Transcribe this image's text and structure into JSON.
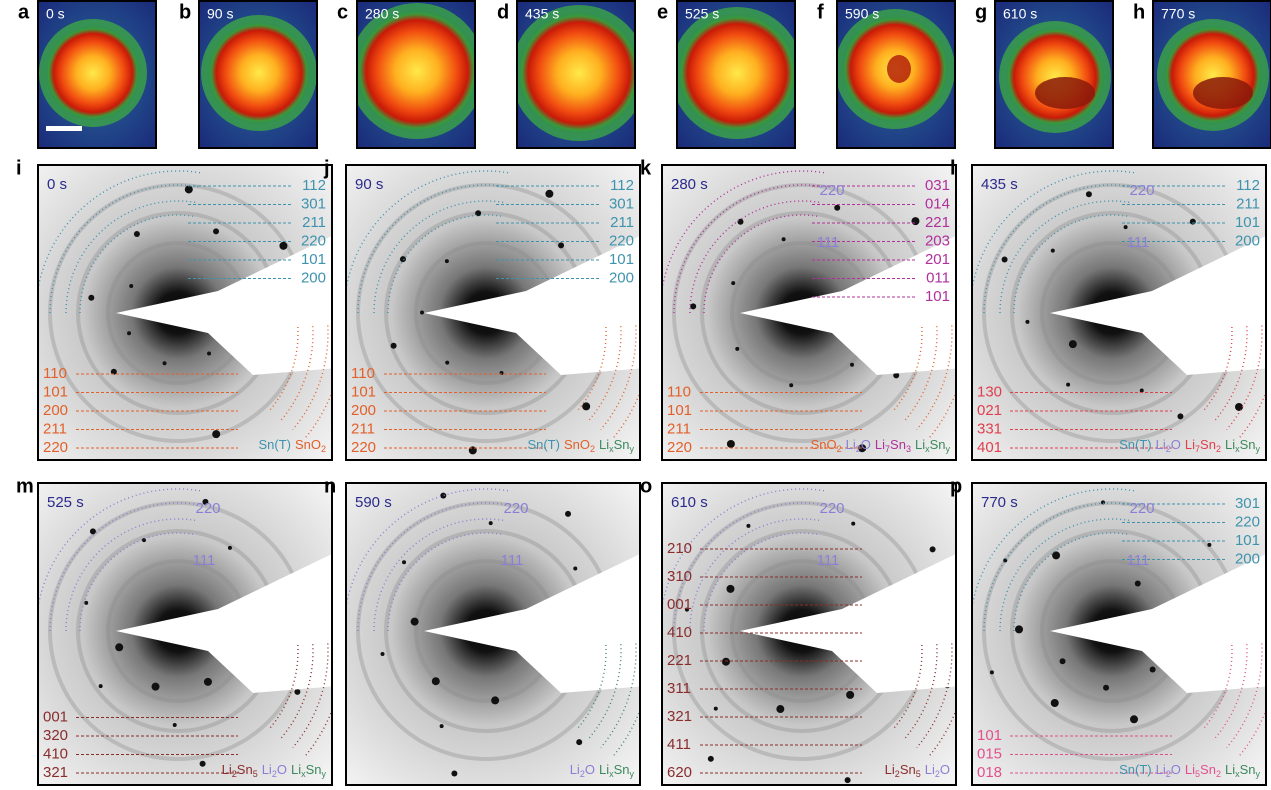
{
  "top_panels": [
    {
      "letter": "a",
      "time": "0 s"
    },
    {
      "letter": "b",
      "time": "90 s"
    },
    {
      "letter": "c",
      "time": "280 s"
    },
    {
      "letter": "d",
      "time": "435 s"
    },
    {
      "letter": "e",
      "time": "525 s"
    },
    {
      "letter": "f",
      "time": "590 s"
    },
    {
      "letter": "g",
      "time": "610 s"
    },
    {
      "letter": "h",
      "time": "770 s"
    }
  ],
  "pattern_panels": [
    {
      "letter": "i",
      "time": "0 s",
      "upper_labels": [
        "112",
        "301",
        "211",
        "220",
        "101",
        "200"
      ],
      "upper_color": "#3f93ad",
      "ring_labels": [],
      "ring_color": "#8a7fd6",
      "lower_labels": [
        "110",
        "101",
        "200",
        "211",
        "220"
      ],
      "lower_color": "#e2602a",
      "legend": [
        {
          "parts": [
            "Sn(T)"
          ],
          "color": "#3f93ad"
        },
        {
          "parts": [
            "SnO",
            "2"
          ],
          "color": "#e2602a"
        }
      ]
    },
    {
      "letter": "j",
      "time": "90 s",
      "upper_labels": [
        "112",
        "301",
        "211",
        "220",
        "101",
        "200"
      ],
      "upper_color": "#3f93ad",
      "ring_labels": [],
      "ring_color": "#8a7fd6",
      "lower_labels": [
        "110",
        "101",
        "200",
        "211",
        "220"
      ],
      "lower_color": "#e2602a",
      "legend": [
        {
          "parts": [
            "Sn(T)"
          ],
          "color": "#3f93ad"
        },
        {
          "parts": [
            "SnO",
            "2"
          ],
          "color": "#e2602a"
        },
        {
          "parts": [
            "Li",
            "x",
            "Sn",
            "y"
          ],
          "color": "#3d8a5c"
        }
      ]
    },
    {
      "letter": "k",
      "time": "280 s",
      "upper_labels": [
        "031",
        "014",
        "221",
        "203",
        "201",
        "011",
        "101"
      ],
      "upper_color": "#b0309c",
      "ring_labels": [
        "220",
        "111"
      ],
      "ring_color": "#8a7fd6",
      "lower_labels": [
        "110",
        "101",
        "211",
        "220"
      ],
      "lower_color": "#e2602a",
      "legend": [
        {
          "parts": [
            "SnO",
            "2"
          ],
          "color": "#e2602a"
        },
        {
          "parts": [
            "Li",
            "2",
            "O"
          ],
          "color": "#8a7fd6"
        },
        {
          "parts": [
            "Li",
            "7",
            "Sn",
            "3"
          ],
          "color": "#b0309c"
        },
        {
          "parts": [
            "Li",
            "x",
            "Sn",
            "y"
          ],
          "color": "#3d8a5c"
        }
      ]
    },
    {
      "letter": "l",
      "time": "435 s",
      "upper_labels": [
        "112",
        "211",
        "101",
        "200"
      ],
      "upper_color": "#3f93ad",
      "ring_labels": [
        "220",
        "111"
      ],
      "ring_color": "#8a7fd6",
      "lower_labels": [
        "130",
        "021",
        "331",
        "401"
      ],
      "lower_color": "#e0404e",
      "legend": [
        {
          "parts": [
            "Sn(T)"
          ],
          "color": "#3f93ad"
        },
        {
          "parts": [
            "Li",
            "2",
            "O"
          ],
          "color": "#8a7fd6"
        },
        {
          "parts": [
            "Li",
            "7",
            "Sn",
            "2"
          ],
          "color": "#e0404e"
        },
        {
          "parts": [
            "Li",
            "x",
            "Sn",
            "y"
          ],
          "color": "#3d8a5c"
        }
      ]
    },
    {
      "letter": "m",
      "time": "525 s",
      "upper_labels": [],
      "upper_color": "#3f93ad",
      "ring_labels": [
        "220",
        "111"
      ],
      "ring_color": "#8a7fd6",
      "lower_labels": [
        "001",
        "320",
        "410",
        "321"
      ],
      "lower_color": "#8a2c2c",
      "legend": [
        {
          "parts": [
            "Li",
            "2",
            "Sn",
            "5"
          ],
          "color": "#8a2c2c"
        },
        {
          "parts": [
            "Li",
            "2",
            "O"
          ],
          "color": "#8a7fd6"
        },
        {
          "parts": [
            "Li",
            "x",
            "Sn",
            "y"
          ],
          "color": "#3d8a5c"
        }
      ]
    },
    {
      "letter": "n",
      "time": "590 s",
      "upper_labels": [],
      "upper_color": "#3f93ad",
      "ring_labels": [
        "220",
        "111"
      ],
      "ring_color": "#8a7fd6",
      "lower_labels": [],
      "lower_color": "#8a2c2c",
      "legend": [
        {
          "parts": [
            "Li",
            "2",
            "O"
          ],
          "color": "#8a7fd6"
        },
        {
          "parts": [
            "Li",
            "x",
            "Sn",
            "y"
          ],
          "color": "#3d8a5c"
        }
      ]
    },
    {
      "letter": "o",
      "time": "610 s",
      "upper_labels": [],
      "upper_color": "#3f93ad",
      "ring_labels": [
        "220",
        "111"
      ],
      "ring_color": "#8a7fd6",
      "lower_labels": [
        "210",
        "310",
        "001",
        "410",
        "221",
        "311",
        "321",
        "411",
        "620"
      ],
      "lower_color": "#8a2c2c",
      "legend": [
        {
          "parts": [
            "Li",
            "2",
            "Sn",
            "5"
          ],
          "color": "#8a2c2c"
        },
        {
          "parts": [
            "Li",
            "2",
            "O"
          ],
          "color": "#8a7fd6"
        }
      ]
    },
    {
      "letter": "p",
      "time": "770 s",
      "upper_labels": [
        "301",
        "220",
        "101",
        "200"
      ],
      "upper_color": "#3f93ad",
      "ring_labels": [
        "220",
        "111"
      ],
      "ring_color": "#8a7fd6",
      "lower_labels": [
        "101",
        "015",
        "018"
      ],
      "lower_color": "#e2508c",
      "legend": [
        {
          "parts": [
            "Sn(T)"
          ],
          "color": "#3f93ad"
        },
        {
          "parts": [
            "Li",
            "2",
            "O"
          ],
          "color": "#8a7fd6"
        },
        {
          "parts": [
            "Li",
            "5",
            "Sn",
            "2"
          ],
          "color": "#e2508c"
        },
        {
          "parts": [
            "Li",
            "x",
            "Sn",
            "y"
          ],
          "color": "#3d8a5c"
        }
      ]
    }
  ]
}
